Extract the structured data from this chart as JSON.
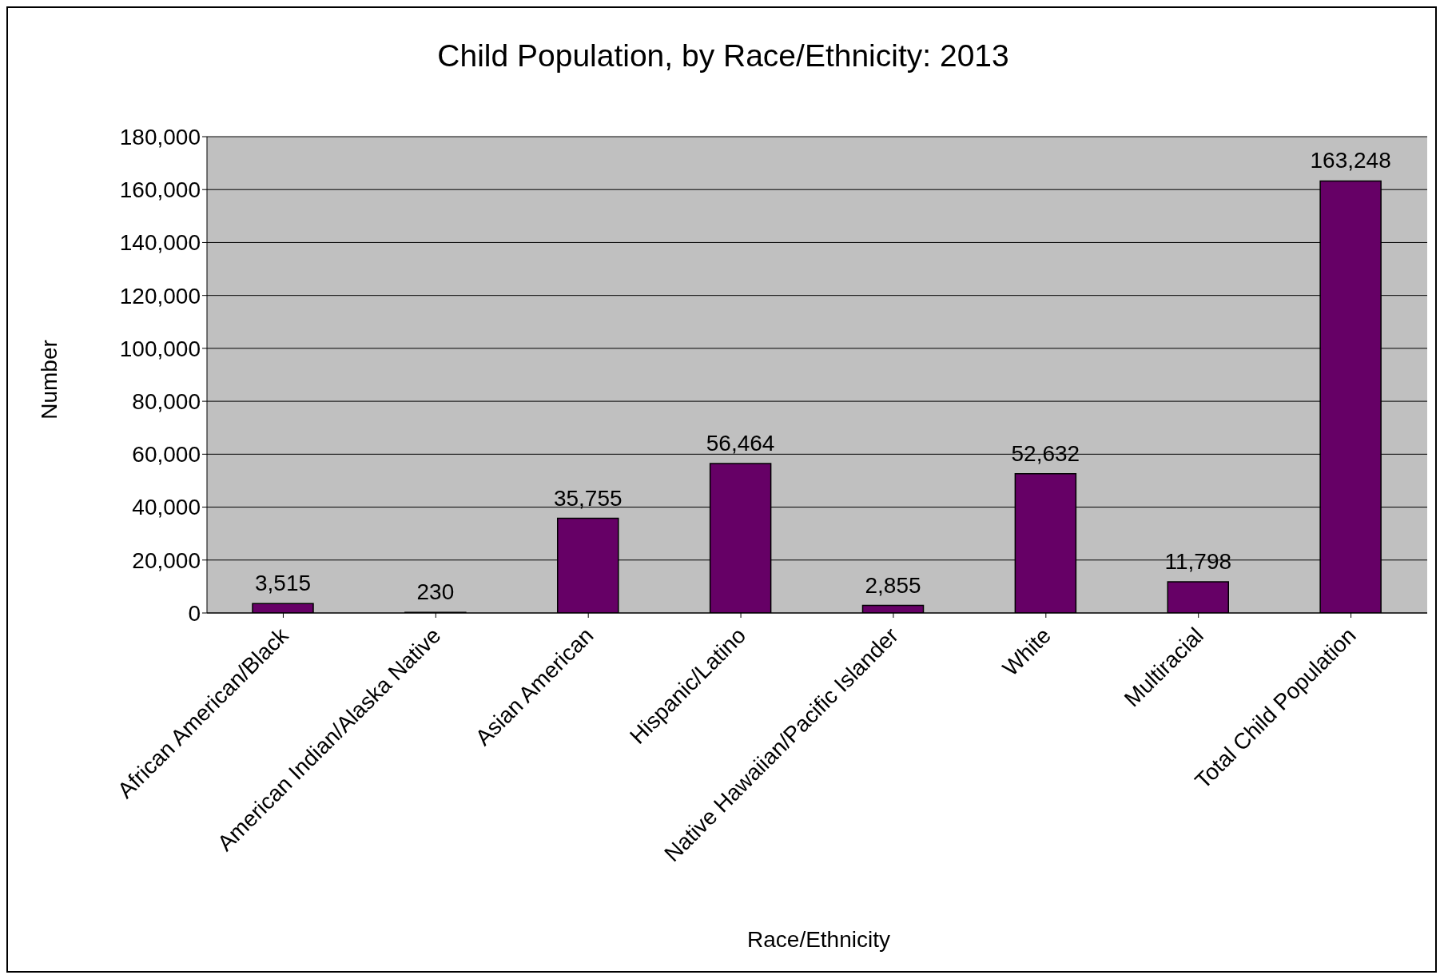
{
  "chart_data": {
    "type": "bar",
    "title": "Child Population, by Race/Ethnicity: 2013",
    "xlabel": "Race/Ethnicity",
    "ylabel": "Number",
    "categories": [
      "African American/Black",
      "American Indian/Alaska Native",
      "Asian American",
      "Hispanic/Latino",
      "Native Hawaiian/Pacific Islander",
      "White",
      "Multiracial",
      "Total Child Population"
    ],
    "values": [
      3515,
      230,
      35755,
      56464,
      2855,
      52632,
      11798,
      163248
    ],
    "value_labels": [
      "3,515",
      "230",
      "35,755",
      "56,464",
      "2,855",
      "52,632",
      "11,798",
      "163,248"
    ],
    "color": "#660066",
    "ylim": [
      0,
      180000
    ],
    "yticks": [
      0,
      {
        "value": 20000,
        "label": "20,000"
      },
      {
        "value": 40000,
        "label": "40,000"
      },
      {
        "value": 60000,
        "label": "60,000"
      },
      {
        "value": 80000,
        "label": "80,000"
      },
      {
        "value": 100000,
        "label": "100,000"
      },
      {
        "value": 120000,
        "label": "120,000"
      },
      {
        "value": 140000,
        "label": "140,000"
      },
      {
        "value": 160000,
        "label": "160,000"
      },
      {
        "value": 180000,
        "label": "180,000"
      }
    ],
    "grid": "y"
  }
}
